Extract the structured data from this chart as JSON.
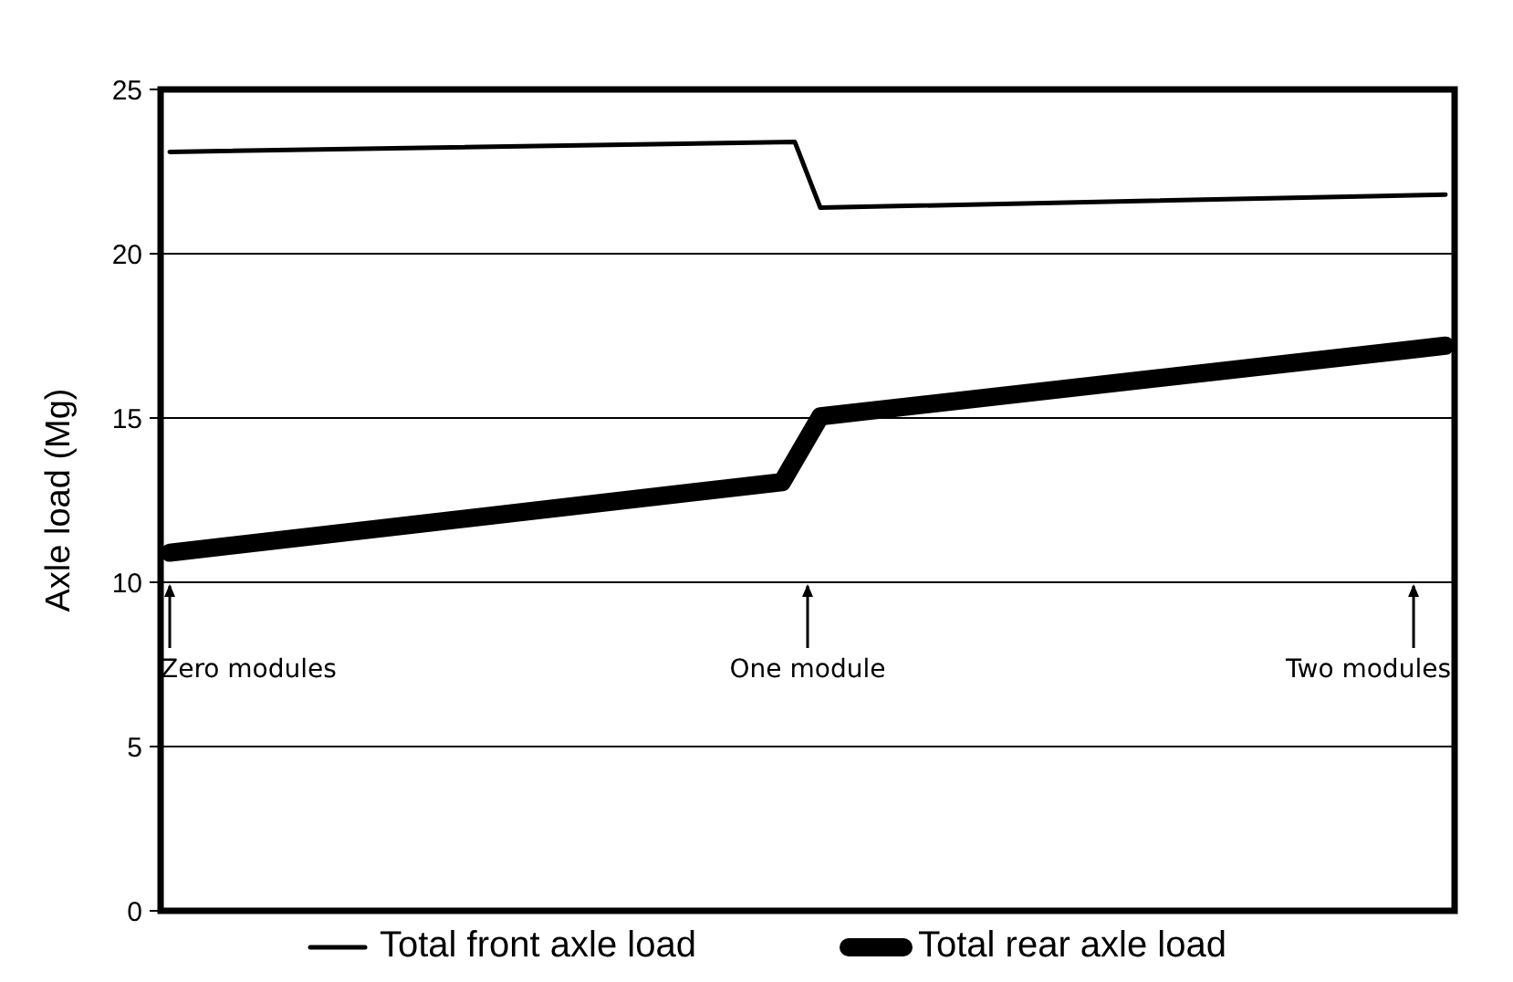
{
  "chart_data": {
    "type": "line",
    "ylabel": "Axle load (Mg)",
    "ylim": [
      0,
      25
    ],
    "yticks": [
      0,
      5,
      10,
      15,
      20,
      25
    ],
    "tick_labels": "y",
    "grid": "y",
    "legend": "bottom",
    "line_style": "solid",
    "annotations": [
      "Zero modules",
      "One module",
      "Two modules"
    ],
    "categories": [
      null,
      null,
      null,
      null,
      null,
      null,
      null,
      null,
      null,
      null,
      null,
      null,
      null,
      null,
      null,
      null,
      null,
      null,
      null,
      null,
      null,
      null,
      null,
      null,
      null,
      null,
      null,
      null,
      null,
      null,
      null,
      null,
      null,
      null,
      null,
      null,
      null,
      null,
      null,
      null,
      null,
      null,
      null,
      null,
      null,
      null,
      null,
      null,
      null,
      null,
      null,
      null,
      null,
      null,
      null,
      null,
      null,
      null,
      null,
      null,
      null,
      null,
      null,
      null,
      null,
      null,
      null,
      null,
      null,
      null,
      null,
      null,
      null,
      null,
      null,
      null,
      null,
      null,
      null,
      null,
      null,
      null,
      null,
      null,
      null,
      null,
      null,
      null,
      null,
      null,
      null,
      null,
      null,
      null,
      null,
      null,
      null,
      null,
      null,
      null,
      null
    ],
    "series": [
      {
        "name": "Total front axle load",
        "color": "#000000",
        "values": [
          23.1,
          null,
          null,
          null,
          null,
          null,
          null,
          null,
          null,
          null,
          null,
          null,
          null,
          null,
          null,
          null,
          null,
          null,
          null,
          null,
          null,
          null,
          null,
          null,
          null,
          null,
          null,
          null,
          null,
          null,
          null,
          null,
          null,
          null,
          null,
          null,
          null,
          null,
          null,
          null,
          null,
          null,
          null,
          null,
          null,
          null,
          null,
          null,
          null,
          23.4,
          null,
          21.4,
          null,
          null,
          null,
          null,
          null,
          null,
          null,
          null,
          null,
          null,
          null,
          null,
          null,
          null,
          null,
          null,
          null,
          null,
          null,
          null,
          null,
          null,
          null,
          null,
          null,
          null,
          null,
          null,
          null,
          null,
          null,
          null,
          null,
          null,
          null,
          null,
          null,
          null,
          null,
          null,
          null,
          null,
          null,
          null,
          null,
          null,
          null,
          null,
          21.8
        ]
      },
      {
        "name": "Total rear axle load",
        "color": "#000000",
        "values": [
          10.9,
          null,
          null,
          null,
          null,
          null,
          null,
          null,
          null,
          null,
          null,
          null,
          null,
          null,
          null,
          null,
          null,
          null,
          null,
          null,
          null,
          null,
          null,
          null,
          null,
          null,
          null,
          null,
          null,
          null,
          null,
          null,
          null,
          null,
          null,
          null,
          null,
          null,
          null,
          null,
          null,
          null,
          null,
          null,
          null,
          null,
          null,
          null,
          13.05,
          null,
          null,
          15.05,
          null,
          null,
          null,
          null,
          null,
          null,
          null,
          null,
          null,
          null,
          null,
          null,
          null,
          null,
          null,
          null,
          null,
          null,
          null,
          null,
          null,
          null,
          null,
          null,
          null,
          null,
          null,
          null,
          null,
          null,
          null,
          null,
          null,
          null,
          null,
          null,
          null,
          null,
          null,
          null,
          null,
          null,
          null,
          null,
          null,
          null,
          null,
          null,
          17.2
        ]
      }
    ]
  }
}
